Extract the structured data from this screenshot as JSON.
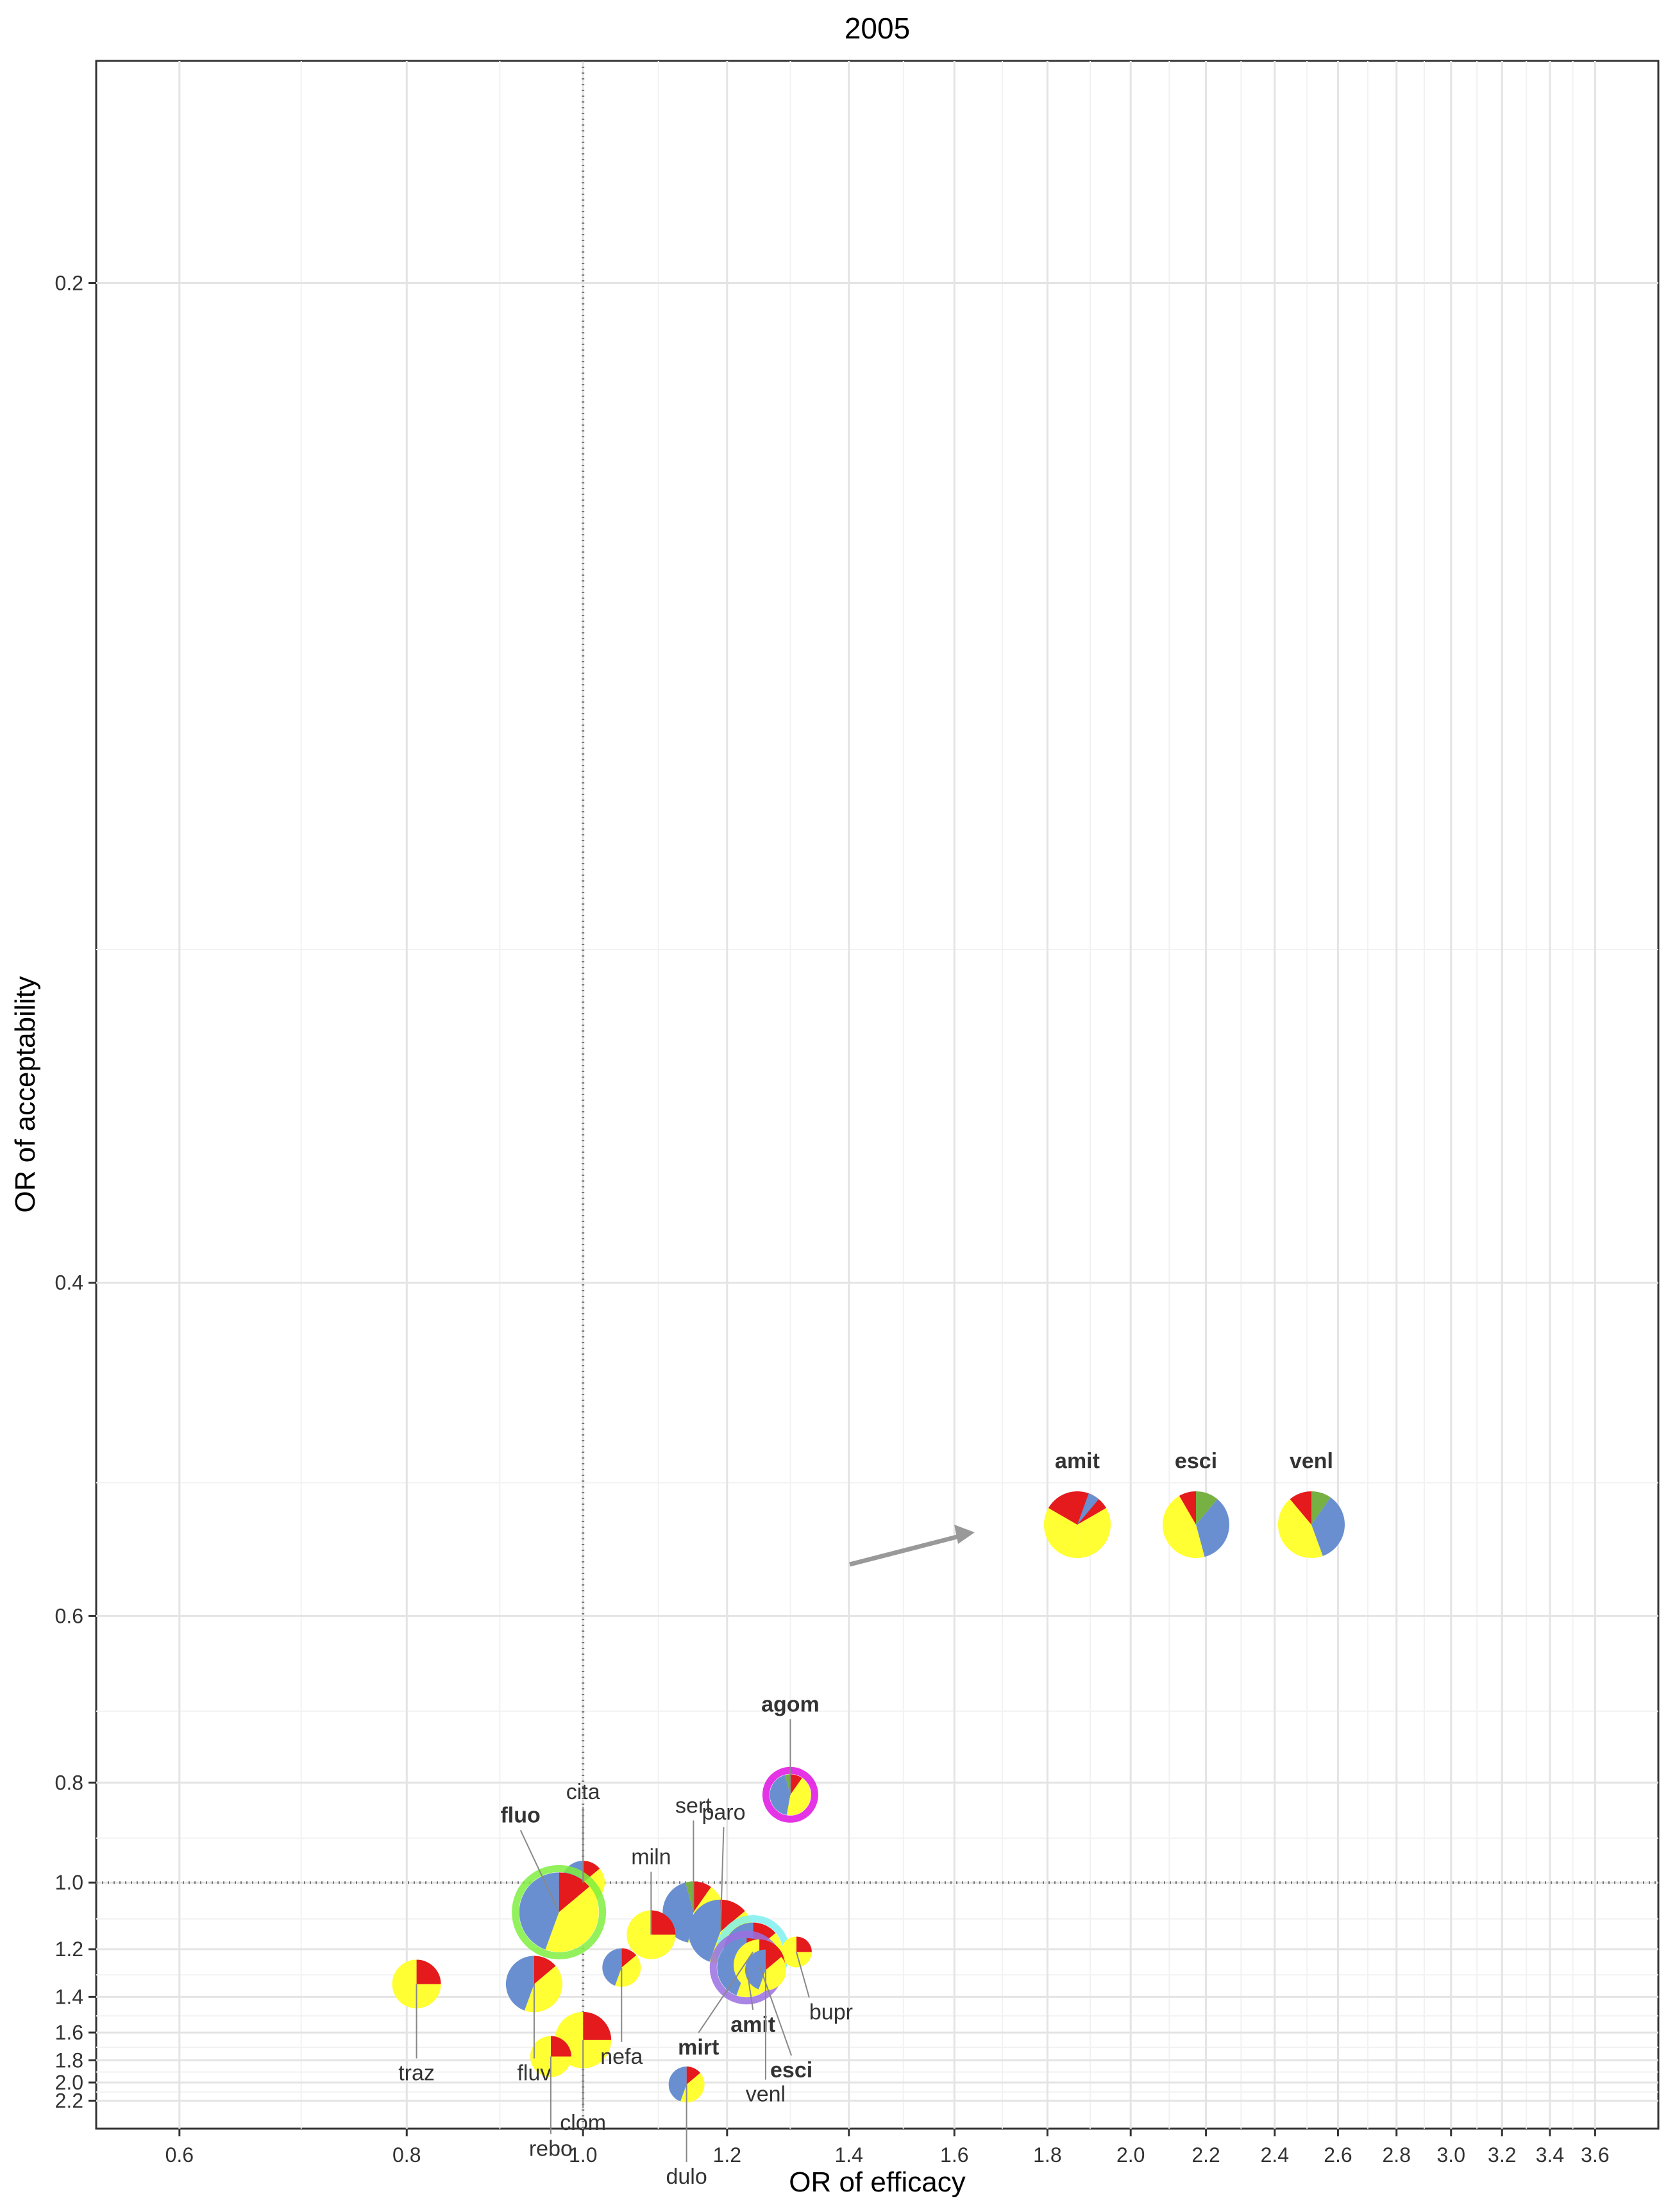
{
  "chart_data": {
    "type": "scatter",
    "title": "2005",
    "xlabel": "OR of efficacy",
    "ylabel": "OR of acceptability",
    "x_scale": "log",
    "y_scale": "reciprocal",
    "xlim": [
      0.54,
      3.9
    ],
    "ylim": [
      0.18,
      2.6
    ],
    "x_ticks": [
      "0.6",
      "0.8",
      "1.0",
      "1.2",
      "1.4",
      "1.6",
      "1.8",
      "2.0",
      "2.2",
      "2.4",
      "2.6",
      "2.8",
      "3.0",
      "3.2",
      "3.4",
      "3.6"
    ],
    "y_ticks": [
      "0.2",
      "0.4",
      "0.6",
      "0.8",
      "1.0",
      "1.2",
      "1.4",
      "1.6",
      "1.8",
      "2.0",
      "2.2"
    ],
    "reference_lines": {
      "x": 1.0,
      "y": 1.0
    },
    "grid": true,
    "colors": {
      "yellow": "#ffff33",
      "red": "#e41a1c",
      "blue": "#6a8fd0",
      "green": "#77b043",
      "orange": "#f4a340"
    },
    "points": [
      {
        "label": "agom",
        "x": 1.3,
        "y": 0.82,
        "ring": "#e010e0",
        "label_color": "#b0407a",
        "bold": true
      },
      {
        "label": "cita",
        "x": 1.0,
        "y": 1.0
      },
      {
        "label": "fluo",
        "x": 0.97,
        "y": 1.08,
        "ring": "#7fef3f",
        "label_color": "#77c050",
        "bold": true
      },
      {
        "label": "sert",
        "x": 1.15,
        "y": 1.08
      },
      {
        "label": "paro",
        "x": 1.19,
        "y": 1.14
      },
      {
        "label": "miln",
        "x": 1.09,
        "y": 1.15
      },
      {
        "label": "mirt",
        "x": 1.24,
        "y": 1.21,
        "ring": "#7ff0f0",
        "label_color": "#8cc8e8",
        "bold": true
      },
      {
        "label": "bupr",
        "x": 1.31,
        "y": 1.21
      },
      {
        "label": "amit",
        "x": 1.23,
        "y": 1.27,
        "ring": "#9a70e0",
        "label_color": "#8a70e0",
        "bold": true
      },
      {
        "label": "esci",
        "x": 1.25,
        "y": 1.26,
        "label_color": "#e08a20",
        "bold": true
      },
      {
        "label": "venl",
        "x": 1.26,
        "y": 1.28
      },
      {
        "label": "nefa",
        "x": 1.05,
        "y": 1.27
      },
      {
        "label": "fluv",
        "x": 0.94,
        "y": 1.34
      },
      {
        "label": "traz",
        "x": 0.81,
        "y": 1.34
      },
      {
        "label": "clom",
        "x": 1.0,
        "y": 1.65
      },
      {
        "label": "rebo",
        "x": 0.96,
        "y": 1.77
      },
      {
        "label": "dulo",
        "x": 1.14,
        "y": 2.02
      }
    ],
    "inset": [
      {
        "label": "amit",
        "label_color": "#8a70e0"
      },
      {
        "label": "esci",
        "label_color": "#e07020"
      },
      {
        "label": "venl",
        "label_color": "#555555"
      }
    ]
  }
}
